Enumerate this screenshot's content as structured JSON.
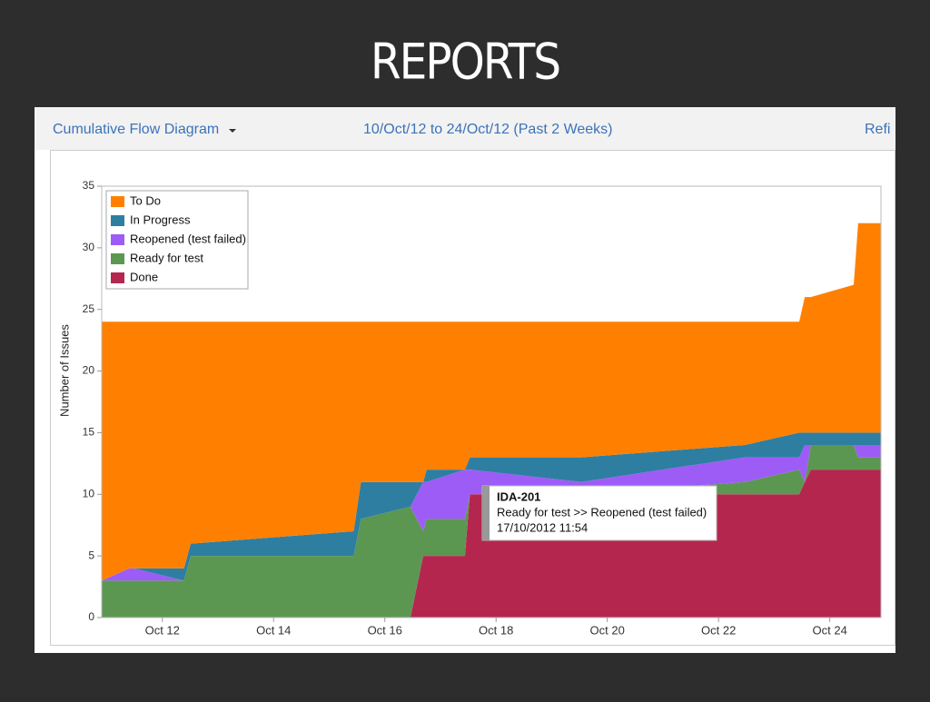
{
  "slide_title": "REPORTS",
  "header": {
    "report": "Cumulative Flow Diagram",
    "range": "10/Oct/12 to 24/Oct/12 (Past 2 Weeks)",
    "action": "Refi"
  },
  "tooltip": {
    "issue": "IDA-201",
    "transition": "Ready for test >> Reopened (test failed)",
    "time": "17/10/2012 11:54"
  },
  "chart_data": {
    "type": "stacked-area",
    "y_label": "Number of Issues",
    "x": [
      10.91,
      11.41,
      11.48,
      12.39,
      12.51,
      15.44,
      15.57,
      16.46,
      16.69,
      16.75,
      17.44,
      17.53,
      19.53,
      22.47,
      23.45,
      23.55,
      23.66,
      24.43,
      24.51,
      24.92
    ],
    "xlim": [
      10.91,
      24.92
    ],
    "xticks": [
      {
        "value": 12,
        "label": "Oct 12"
      },
      {
        "value": 14,
        "label": "Oct 14"
      },
      {
        "value": 16,
        "label": "Oct 16"
      },
      {
        "value": 18,
        "label": "Oct 18"
      },
      {
        "value": 20,
        "label": "Oct 20"
      },
      {
        "value": 22,
        "label": "Oct 22"
      },
      {
        "value": 24,
        "label": "Oct 24"
      }
    ],
    "ylim": [
      0,
      35
    ],
    "yticks": [
      0,
      5,
      10,
      15,
      20,
      25,
      30,
      35
    ],
    "legend": "top-left",
    "series": [
      {
        "name": "To Do",
        "color": "#ff8000",
        "values": [
          21,
          20,
          20,
          20,
          18,
          17,
          13,
          13,
          13,
          12,
          12,
          11,
          11,
          10,
          9,
          11,
          11,
          12,
          17,
          17
        ]
      },
      {
        "name": "In Progress",
        "color": "#2e7ea2",
        "values": [
          0,
          0,
          0,
          1,
          1,
          2,
          3,
          2,
          0,
          1,
          0,
          1,
          2,
          1,
          2,
          1,
          1,
          1,
          1,
          1
        ]
      },
      {
        "name": "Reopened (test failed)",
        "color": "#9d5cf6",
        "values": [
          0,
          1,
          1,
          0,
          0,
          0,
          0,
          0,
          4,
          3,
          4,
          2,
          1,
          2,
          1,
          3,
          0,
          0,
          1,
          1
        ]
      },
      {
        "name": "Ready for test",
        "color": "#5c9752",
        "values": [
          3,
          3,
          3,
          3,
          5,
          5,
          8,
          9,
          2,
          3,
          3,
          0,
          0,
          1,
          2,
          0,
          2,
          2,
          1,
          1
        ]
      },
      {
        "name": "Done",
        "color": "#b5264f",
        "values": [
          0,
          0,
          0,
          0,
          0,
          0,
          0,
          0,
          5,
          5,
          5,
          10,
          10,
          10,
          10,
          11,
          12,
          12,
          12,
          12
        ]
      }
    ]
  }
}
